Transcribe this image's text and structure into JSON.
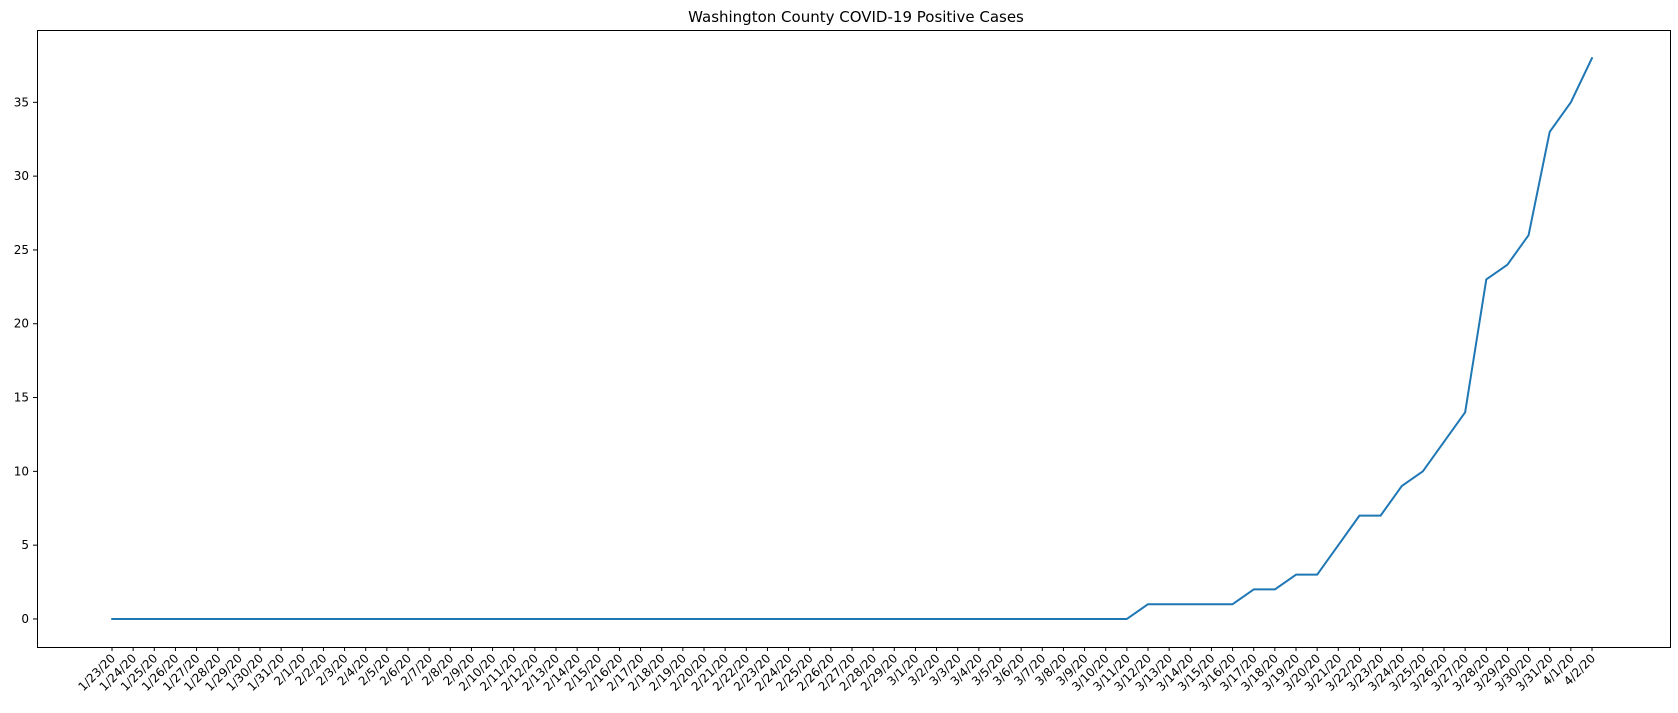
{
  "chart_data": {
    "type": "line",
    "title": "Washington County COVID-19 Positive Cases",
    "xlabel": "",
    "ylabel": "",
    "ylim": [
      -1.9,
      39.9
    ],
    "yticks": [
      0,
      5,
      10,
      15,
      20,
      25,
      30,
      35
    ],
    "grid": false,
    "line_color": "#1f77b4",
    "categories": [
      "1/23/20",
      "1/24/20",
      "1/25/20",
      "1/26/20",
      "1/27/20",
      "1/28/20",
      "1/29/20",
      "1/30/20",
      "1/31/20",
      "2/1/20",
      "2/2/20",
      "2/3/20",
      "2/4/20",
      "2/5/20",
      "2/6/20",
      "2/7/20",
      "2/8/20",
      "2/9/20",
      "2/10/20",
      "2/11/20",
      "2/12/20",
      "2/13/20",
      "2/14/20",
      "2/15/20",
      "2/16/20",
      "2/17/20",
      "2/18/20",
      "2/19/20",
      "2/20/20",
      "2/21/20",
      "2/22/20",
      "2/23/20",
      "2/24/20",
      "2/25/20",
      "2/26/20",
      "2/27/20",
      "2/28/20",
      "2/29/20",
      "3/1/20",
      "3/2/20",
      "3/3/20",
      "3/4/20",
      "3/5/20",
      "3/6/20",
      "3/7/20",
      "3/8/20",
      "3/9/20",
      "3/10/20",
      "3/11/20",
      "3/12/20",
      "3/13/20",
      "3/14/20",
      "3/15/20",
      "3/16/20",
      "3/17/20",
      "3/18/20",
      "3/19/20",
      "3/20/20",
      "3/21/20",
      "3/22/20",
      "3/23/20",
      "3/24/20",
      "3/25/20",
      "3/26/20",
      "3/27/20",
      "3/28/20",
      "3/29/20",
      "3/30/20",
      "3/31/20",
      "4/1/20",
      "4/2/20"
    ],
    "values": [
      0,
      0,
      0,
      0,
      0,
      0,
      0,
      0,
      0,
      0,
      0,
      0,
      0,
      0,
      0,
      0,
      0,
      0,
      0,
      0,
      0,
      0,
      0,
      0,
      0,
      0,
      0,
      0,
      0,
      0,
      0,
      0,
      0,
      0,
      0,
      0,
      0,
      0,
      0,
      0,
      0,
      0,
      0,
      0,
      0,
      0,
      0,
      0,
      0,
      1,
      1,
      1,
      1,
      1,
      2,
      2,
      3,
      3,
      5,
      7,
      7,
      9,
      10,
      12,
      14,
      23,
      24,
      26,
      33,
      35,
      38
    ]
  }
}
